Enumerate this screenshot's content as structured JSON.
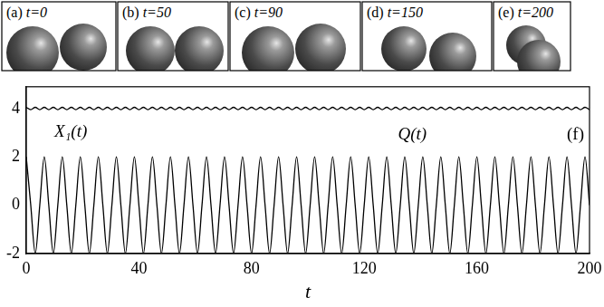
{
  "panels": [
    {
      "label": "(a)",
      "text": "t=0"
    },
    {
      "label": "(b)",
      "text": "t=50"
    },
    {
      "label": "(c)",
      "text": "t=90"
    },
    {
      "label": "(d)",
      "text": "t=150"
    },
    {
      "label": "(e)",
      "text": "t=200"
    }
  ],
  "chart_data": {
    "type": "line",
    "label": "(f)",
    "x_label": "t",
    "x": [
      0,
      1.6,
      3.2,
      4.8,
      6.4,
      8,
      9.6,
      11.2,
      12.8,
      14.4,
      16,
      17.6,
      19.2,
      20.8,
      22.4,
      24,
      25.6,
      27.2,
      28.8,
      30.4,
      32,
      33.6,
      35.2,
      36.8,
      38.4,
      40,
      41.6,
      43.2,
      44.8,
      46.4,
      48,
      49.6,
      51.2,
      52.8,
      54.4,
      56,
      57.6,
      59.2,
      60.8,
      62.4,
      64,
      65.6,
      67.2,
      68.8,
      70.4,
      72,
      73.6,
      75.2,
      76.8,
      78.4,
      80,
      81.6,
      83.2,
      84.8,
      86.4,
      88,
      89.6,
      91.2,
      92.8,
      94.4,
      96,
      97.6,
      99.2,
      100.8,
      102.4,
      104,
      105.6,
      107.2,
      108.8,
      110.4,
      112,
      113.6,
      115.2,
      116.8,
      118.4,
      120,
      121.6,
      123.2,
      124.8,
      126.4,
      128,
      129.6,
      131.2,
      132.8,
      134.4,
      136,
      137.6,
      139.2,
      140.8,
      142.4,
      144,
      145.6,
      147.2,
      148.8,
      150.4,
      152,
      153.6,
      155.2,
      156.8,
      158.4,
      160,
      161.6,
      163.2,
      164.8,
      166.4,
      168,
      169.6,
      171.2,
      172.8,
      174.4,
      176,
      177.6,
      179.2,
      180.8,
      182.4,
      184,
      185.6,
      187.2,
      188.8,
      190.4,
      192,
      193.6,
      195.2,
      196.8,
      198.4,
      200
    ],
    "series": [
      {
        "name": "X₁(t)",
        "color": "#000000",
        "values": [
          2,
          0,
          -2,
          0,
          2,
          0,
          -2,
          0,
          2,
          0,
          -2,
          0,
          2,
          0,
          -2,
          0,
          2,
          0,
          -2,
          0,
          2,
          0,
          -2,
          0,
          2,
          0,
          -2,
          0,
          2,
          0,
          -2,
          0,
          2,
          0,
          -2,
          0,
          2,
          0,
          -2,
          0,
          2,
          0,
          -2,
          0,
          2,
          0,
          -2,
          0,
          2,
          0,
          -2,
          0,
          2,
          0,
          -2,
          0,
          2,
          0,
          -2,
          0,
          2,
          0,
          -2,
          0,
          2,
          0,
          -2,
          0,
          2,
          0,
          -2,
          0,
          2,
          0,
          -2,
          0,
          2,
          0,
          -2,
          0,
          2,
          0,
          -2,
          0,
          2,
          0,
          -2,
          0,
          2,
          0,
          -2,
          0,
          2,
          0,
          -2,
          0,
          2,
          0,
          -2,
          0,
          2,
          0,
          -2,
          0,
          2,
          0,
          -2,
          0,
          2,
          0,
          -2,
          0,
          2,
          0,
          -2,
          0,
          2,
          0,
          -2,
          0,
          2,
          0,
          -2,
          0,
          2,
          0
        ]
      },
      {
        "name": "Q(t)",
        "color": "#000000",
        "values": [
          4.05,
          3.95,
          4.05,
          3.95,
          4.05,
          3.95,
          4.05,
          3.95,
          4.05,
          3.95,
          4.05,
          3.95,
          4.05,
          3.95,
          4.05,
          3.95,
          4.05,
          3.95,
          4.05,
          3.95,
          4.05,
          3.95,
          4.05,
          3.95,
          4.05,
          3.95,
          4.05,
          3.95,
          4.05,
          3.95,
          4.05,
          3.95,
          4.05,
          3.95,
          4.05,
          3.95,
          4.05,
          3.95,
          4.05,
          3.95,
          4.05,
          3.95,
          4.05,
          3.95,
          4.05,
          3.95,
          4.05,
          3.95,
          4.05,
          3.95,
          4.05,
          3.95,
          4.05,
          3.95,
          4.05,
          3.95,
          4.05,
          3.95,
          4.05,
          3.95,
          4.05,
          3.95,
          4.05,
          3.95,
          4.05,
          3.95,
          4.05,
          3.95,
          4.05,
          3.95,
          4.05,
          3.95,
          4.05,
          3.95,
          4.05,
          3.95,
          4.05,
          3.95,
          4.05,
          3.95,
          4.05,
          3.95,
          4.05,
          3.95,
          4.05,
          3.95,
          4.05,
          3.95,
          4.05,
          3.95,
          4.05,
          3.95,
          4.05,
          3.95,
          4.05,
          3.95,
          4.05,
          3.95,
          4.05,
          3.95,
          4.05,
          3.95,
          4.05,
          3.95,
          4.05,
          3.95,
          4.05,
          3.95,
          4.05,
          3.95,
          4.05,
          3.95,
          4.05,
          3.95,
          4.05,
          3.95,
          4.05,
          3.95,
          4.05,
          3.95,
          4.05,
          3.95,
          4.05,
          3.95,
          4.05,
          3.95
        ]
      }
    ],
    "xlim": [
      0,
      200
    ],
    "xticks": [
      0,
      40,
      80,
      120,
      160,
      200
    ],
    "ylim": [
      -2,
      4.9
    ],
    "yticks": [
      -2,
      0,
      2,
      4
    ],
    "grid": false,
    "legend": "none"
  }
}
